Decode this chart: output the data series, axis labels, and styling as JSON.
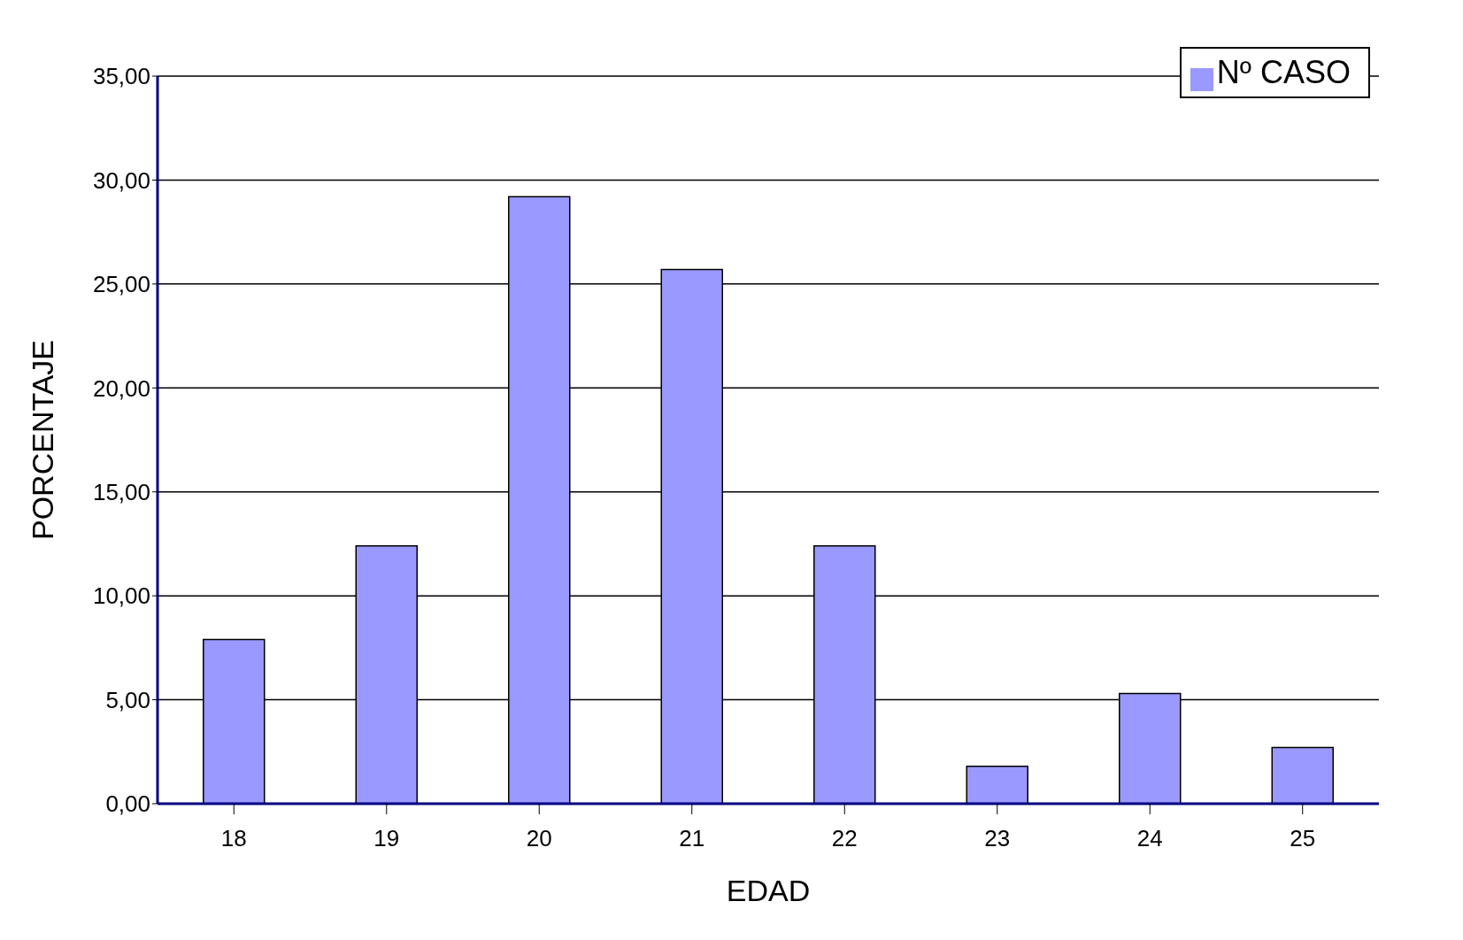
{
  "chart_data": {
    "type": "bar",
    "xlabel": "EDAD",
    "ylabel": "PORCENTAJE",
    "categories": [
      "18",
      "19",
      "20",
      "21",
      "22",
      "23",
      "24",
      "25"
    ],
    "series": [
      {
        "name": "Nº CASO",
        "color": "#9999ff",
        "values": [
          7.9,
          12.4,
          29.2,
          25.7,
          12.4,
          1.8,
          5.3,
          2.7
        ]
      }
    ],
    "ylim": [
      0,
      35
    ],
    "yticks": [
      {
        "value": 0,
        "label": "0,00"
      },
      {
        "value": 5,
        "label": "5,00"
      },
      {
        "value": 10,
        "label": "10,00"
      },
      {
        "value": 15,
        "label": "15,00"
      },
      {
        "value": 20,
        "label": "20,00"
      },
      {
        "value": 25,
        "label": "25,00"
      },
      {
        "value": 30,
        "label": "30,00"
      },
      {
        "value": 35,
        "label": "35,00"
      }
    ],
    "grid": "y",
    "legend": "top right"
  }
}
